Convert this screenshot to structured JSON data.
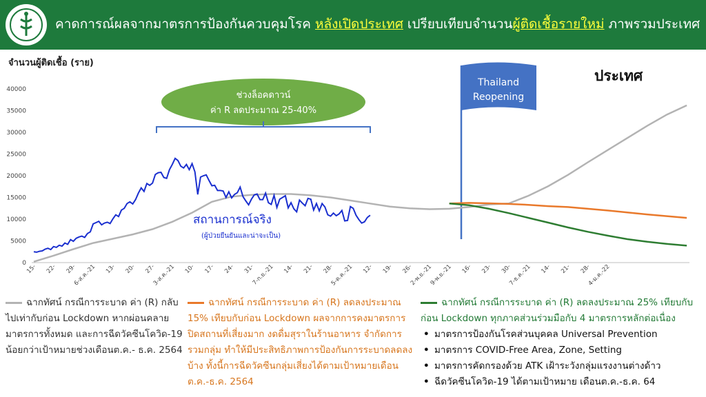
{
  "header": {
    "title_part1": "คาดการณ์ผลจากมาตรการป้องกันควบคุมโรค ",
    "title_highlight1": "หลังเปิดประเทศ",
    "title_part2": " เปรียบเทียบจำนวน",
    "title_highlight2": "ผู้ติดเชื้อรายใหม่",
    "title_part3": " ภาพรวมประเทศ"
  },
  "colors": {
    "header_bg": "#1e7a3c",
    "highlight": "#ffff3a",
    "actual": "#1a2fcf",
    "gray": "#b3b3b3",
    "orange": "#e9792b",
    "green": "#2e7d32",
    "lockdown_bubble": "#70ad47",
    "flag": "#4472c4"
  },
  "chart_data": {
    "type": "line",
    "ylabel": "จำนวนผู้ติดเชื้อ (ราย)",
    "ylim": [
      0,
      40000
    ],
    "yticks": [
      0,
      5000,
      10000,
      15000,
      20000,
      25000,
      30000,
      35000,
      40000
    ],
    "region_label": "ประเทศ",
    "x_ticks": [
      "15-",
      "22-",
      "29-",
      "6-ส.ค.-21",
      "13-",
      "20-",
      "27-",
      "3-ส.ค.-21",
      "10-",
      "17-",
      "24-",
      "31-",
      "7-ก.ย.-21",
      "14-",
      "21-",
      "28-",
      "5-ต.ค.-21",
      "12-",
      "19-",
      "26-",
      "2-พ.ย.-21",
      "9-พ.ย.-21",
      "16-",
      "23-",
      "30-",
      "7-ธ.ค.-21",
      "14-",
      "21-",
      "28-",
      "4-ม.ค.-22"
    ],
    "annotations": {
      "lockdown_line1": "ช่วงล็อคดาวน์",
      "lockdown_line2": "ค่า R ลดประมาณ 25-40%",
      "flag_line1": "Thailand",
      "flag_line2": "Reopening",
      "actual_label": "สถานการณ์จริง",
      "actual_sublabel": "(ผู้ป่วยยืนยันและน่าจะเป็น)"
    },
    "series": [
      {
        "key": "actual",
        "values": [
          2500,
          2400,
          2600,
          2700,
          3100,
          3300,
          3000,
          3700,
          3500,
          4000,
          3800,
          4500,
          4200,
          5300,
          4900,
          5600,
          5900,
          6100,
          5800,
          6700,
          7100,
          8900,
          9200,
          9500,
          8700,
          9100,
          9300,
          9000,
          10100,
          11000,
          10600,
          12100,
          12500,
          13600,
          14000,
          13500,
          14500,
          16000,
          17200,
          16400,
          18200,
          17800,
          18300,
          20300,
          20700,
          20800,
          19600,
          19400,
          21400,
          22600,
          24000,
          23500,
          22200,
          21800,
          22600,
          21400,
          22800,
          20900,
          15700,
          19700,
          20000,
          20200,
          18900,
          17700,
          17800,
          16600,
          16600,
          16500,
          15000,
          16300,
          14900,
          15700,
          16100,
          17400,
          15200,
          14200,
          13300,
          14600,
          15600,
          15800,
          14500,
          14500,
          16000,
          13800,
          13400,
          15500,
          12700,
          14600,
          15000,
          15400,
          12600,
          13800,
          12400,
          11700,
          14400,
          13700,
          13100,
          14800,
          14600,
          12100,
          13600,
          11900,
          13600,
          12800,
          11000,
          10700,
          11400,
          10800,
          11200,
          12000,
          9600,
          9700,
          12900,
          12500,
          10900,
          9900,
          9100,
          9400,
          10400,
          10900
        ]
      },
      {
        "key": "gray",
        "values": [
          200,
          1600,
          3100,
          4500,
          5500,
          6500,
          7700,
          9400,
          11500,
          14000,
          15200,
          15600,
          15800,
          15800,
          15500,
          15000,
          14300,
          13600,
          12900,
          12500,
          12300,
          12400,
          12800,
          13400,
          13600,
          15400,
          17600,
          20200,
          23100,
          25900,
          28700,
          31500,
          34100,
          36200
        ]
      },
      {
        "key": "orange",
        "values": [
          13600,
          13750,
          13650,
          13500,
          13300,
          13000,
          12800,
          12400,
          12000,
          11550,
          11100,
          10700,
          10300
        ]
      },
      {
        "key": "green",
        "values": [
          13600,
          13200,
          12400,
          11400,
          10300,
          9200,
          8100,
          7100,
          6200,
          5400,
          4800,
          4300,
          3900
        ]
      }
    ]
  },
  "legend": {
    "gray_text": "ฉากทัศน์ กรณีการระบาด ค่า (R) กลับไปเท่ากับก่อน Lockdown หากผ่อนคลายมาตรการทั้งหมด และการฉีดวัคซีนโควิด-19 น้อยกว่าเป้าหมายช่วงเดือนต.ค.- ธ.ค. 2564",
    "orange_text": "ฉากทัศน์ กรณีการระบาด ค่า (R) ลดลงประมาณ 15% เทียบกับก่อน Lockdown ผลจากการคงมาตรการปิดสถานที่เสี่ยงมาก งดดื่มสุราในร้านอาหาร จำกัดการรวมกลุ่ม ทำให้มีประสิทธิภาพการป้องกันการระบาดลดลงบ้าง ทั้งนี้การฉีดวัคซีนกลุ่มเสี่ยงได้ตามเป้าหมายเดือนต.ค.-ธ.ค. 2564",
    "green_text": "ฉากทัศน์ กรณีการระบาด ค่า (R) ลดลงประมาณ 25% เทียบกับก่อน Lockdown ทุกภาคส่วนร่วมมือกับ 4 มาตรการหลักต่อเนื่อง",
    "green_bullets": [
      "มาตรการป้องกันโรคส่วนบุคคล Universal Prevention",
      "มาตรการ COVID-Free Area, Zone, Setting",
      "มาตรการคัดกรองด้วย ATK เฝ้าระวังกลุ่มแรงงานต่างด้าว",
      "ฉีดวัคซีนโควิด-19 ได้ตามเป้าหมาย เดือนต.ค.-ธ.ค. 64"
    ]
  }
}
